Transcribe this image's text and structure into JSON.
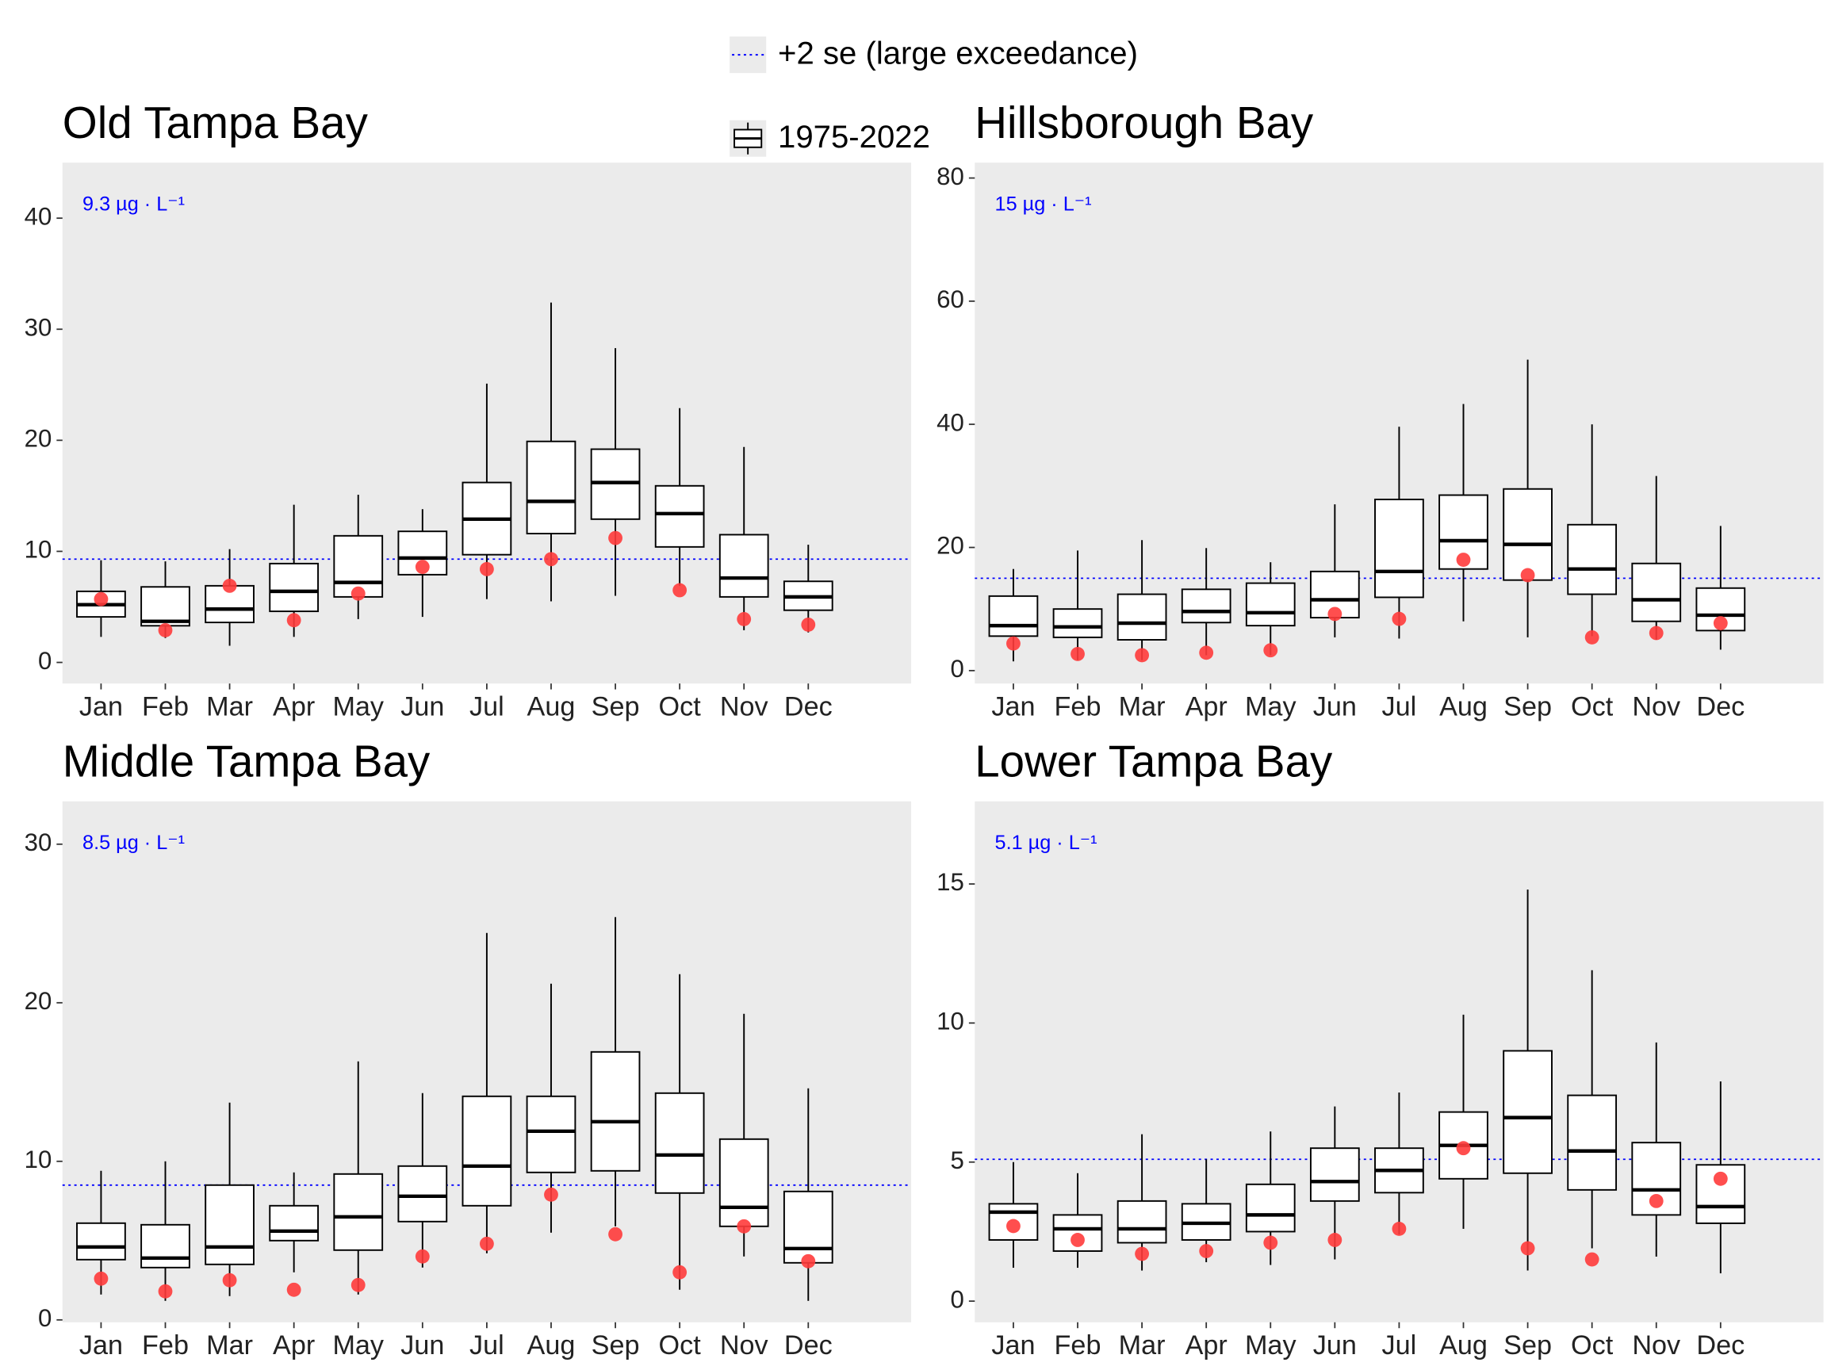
{
  "legend": [
    {
      "label": "+2 se (large exceedance)",
      "color": "#0000ff"
    },
    {
      "label": "1975-2022"
    }
  ],
  "chart_data": [
    {
      "type": "box",
      "title": "Old Tampa Bay",
      "categories": [
        "Jan",
        "Feb",
        "Mar",
        "Apr",
        "May",
        "Jun",
        "Jul",
        "Aug",
        "Sep",
        "Oct",
        "Nov",
        "Dec"
      ],
      "whisker_low": [
        2.3,
        2.2,
        1.5,
        2.3,
        3.9,
        4.1,
        5.7,
        5.5,
        6.0,
        6.9,
        2.9,
        2.7
      ],
      "q1": [
        4.1,
        3.3,
        3.6,
        4.6,
        5.9,
        7.9,
        9.7,
        11.6,
        12.9,
        10.4,
        5.9,
        4.7
      ],
      "median": [
        5.2,
        3.7,
        4.8,
        6.4,
        7.2,
        9.4,
        12.9,
        14.5,
        16.2,
        13.4,
        7.6,
        5.9
      ],
      "q3": [
        6.4,
        6.8,
        6.9,
        8.9,
        11.4,
        11.8,
        16.2,
        19.9,
        19.2,
        15.9,
        11.5,
        7.3
      ],
      "whisker_high": [
        9.2,
        9.1,
        10.2,
        14.2,
        15.1,
        13.8,
        25.1,
        32.4,
        28.3,
        22.9,
        19.4,
        10.6
      ],
      "current": {
        "color": "#ff3b3b",
        "values": [
          5.7,
          2.9,
          6.9,
          3.8,
          6.2,
          8.6,
          8.4,
          9.3,
          11.2,
          6.5,
          3.9,
          3.4
        ]
      },
      "threshold": {
        "value": 9.3,
        "label": "9.3 µg · L⁻¹",
        "color": "#0000ff"
      },
      "ylim": [
        -1.9,
        45
      ],
      "yticks": [
        0,
        10,
        20,
        30,
        40
      ]
    },
    {
      "type": "box",
      "title": "Hillsborough Bay",
      "categories": [
        "Jan",
        "Feb",
        "Mar",
        "Apr",
        "May",
        "Jun",
        "Jul",
        "Aug",
        "Sep",
        "Oct",
        "Nov",
        "Dec"
      ],
      "whisker_low": [
        1.5,
        1.7,
        1.7,
        2.5,
        2.5,
        5.4,
        5.2,
        8.0,
        5.4,
        5.6,
        5.0,
        3.4
      ],
      "q1": [
        5.6,
        5.4,
        5.0,
        7.8,
        7.3,
        8.6,
        11.9,
        16.5,
        14.7,
        12.4,
        8.0,
        6.5
      ],
      "median": [
        7.3,
        7.1,
        7.7,
        9.6,
        9.4,
        11.5,
        16.1,
        21.1,
        20.5,
        16.5,
        11.5,
        9.0
      ],
      "q3": [
        12.1,
        10.0,
        12.4,
        13.2,
        14.2,
        16.1,
        27.8,
        28.5,
        29.5,
        23.7,
        17.4,
        13.4
      ],
      "whisker_high": [
        16.5,
        19.5,
        21.2,
        19.9,
        17.6,
        27.0,
        39.6,
        43.3,
        50.5,
        40.0,
        31.6,
        23.5
      ],
      "current": {
        "color": "#ff3b3b",
        "values": [
          4.4,
          2.7,
          2.5,
          2.9,
          3.3,
          9.2,
          8.4,
          18.0,
          15.5,
          5.4,
          6.1,
          7.7
        ]
      },
      "threshold": {
        "value": 15,
        "label": "15 µg · L⁻¹",
        "color": "#0000ff"
      },
      "ylim": [
        -2.1,
        82.5
      ],
      "yticks": [
        0,
        20,
        40,
        60,
        80
      ]
    },
    {
      "type": "box",
      "title": "Middle Tampa Bay",
      "categories": [
        "Jan",
        "Feb",
        "Mar",
        "Apr",
        "May",
        "Jun",
        "Jul",
        "Aug",
        "Sep",
        "Oct",
        "Nov",
        "Dec"
      ],
      "whisker_low": [
        1.6,
        1.2,
        1.5,
        3.0,
        1.6,
        3.3,
        4.2,
        5.5,
        5.9,
        1.9,
        4.0,
        1.2
      ],
      "q1": [
        3.8,
        3.3,
        3.5,
        5.0,
        4.4,
        6.2,
        7.2,
        9.3,
        9.4,
        8.0,
        5.9,
        3.6
      ],
      "median": [
        4.6,
        3.9,
        4.6,
        5.6,
        6.5,
        7.8,
        9.7,
        11.9,
        12.5,
        10.4,
        7.1,
        4.5
      ],
      "q3": [
        6.1,
        6.0,
        8.5,
        7.2,
        9.2,
        9.7,
        14.1,
        14.1,
        16.9,
        14.3,
        11.4,
        8.1
      ],
      "whisker_high": [
        9.4,
        10.0,
        13.7,
        9.3,
        16.3,
        14.3,
        24.4,
        21.2,
        25.4,
        21.8,
        19.3,
        14.6
      ],
      "current": {
        "color": "#ff3b3b",
        "values": [
          2.6,
          1.8,
          2.5,
          1.9,
          2.2,
          4.0,
          4.8,
          7.9,
          5.4,
          3.0,
          5.9,
          3.7
        ]
      },
      "threshold": {
        "value": 8.5,
        "label": "8.5 µg · L⁻¹",
        "color": "#0000ff"
      },
      "ylim": [
        -0.15,
        32.7
      ],
      "yticks": [
        0,
        10,
        20,
        30
      ]
    },
    {
      "type": "box",
      "title": "Lower Tampa Bay",
      "categories": [
        "Jan",
        "Feb",
        "Mar",
        "Apr",
        "May",
        "Jun",
        "Jul",
        "Aug",
        "Sep",
        "Oct",
        "Nov",
        "Dec"
      ],
      "whisker_low": [
        1.2,
        1.2,
        1.1,
        1.4,
        1.3,
        1.5,
        2.4,
        2.6,
        1.1,
        1.9,
        1.6,
        1.0
      ],
      "q1": [
        2.2,
        1.8,
        2.1,
        2.2,
        2.5,
        3.6,
        3.9,
        4.4,
        4.6,
        4.0,
        3.1,
        2.8
      ],
      "median": [
        3.2,
        2.6,
        2.6,
        2.8,
        3.1,
        4.3,
        4.7,
        5.6,
        6.6,
        5.4,
        4.0,
        3.4
      ],
      "q3": [
        3.5,
        3.1,
        3.6,
        3.5,
        4.2,
        5.5,
        5.5,
        6.8,
        9.0,
        7.4,
        5.7,
        4.9
      ],
      "whisker_high": [
        5.0,
        4.6,
        6.0,
        5.1,
        6.1,
        7.0,
        7.5,
        10.3,
        14.8,
        11.9,
        9.3,
        7.9
      ],
      "current": {
        "color": "#ff3b3b",
        "values": [
          2.7,
          2.2,
          1.7,
          1.8,
          2.1,
          2.2,
          2.6,
          5.5,
          1.9,
          1.5,
          3.6,
          4.4
        ]
      },
      "threshold": {
        "value": 5.1,
        "label": "5.1 µg · L⁻¹",
        "color": "#0000ff"
      },
      "ylim": [
        -0.76,
        17.97
      ],
      "yticks": [
        0,
        5,
        10,
        15
      ]
    }
  ]
}
